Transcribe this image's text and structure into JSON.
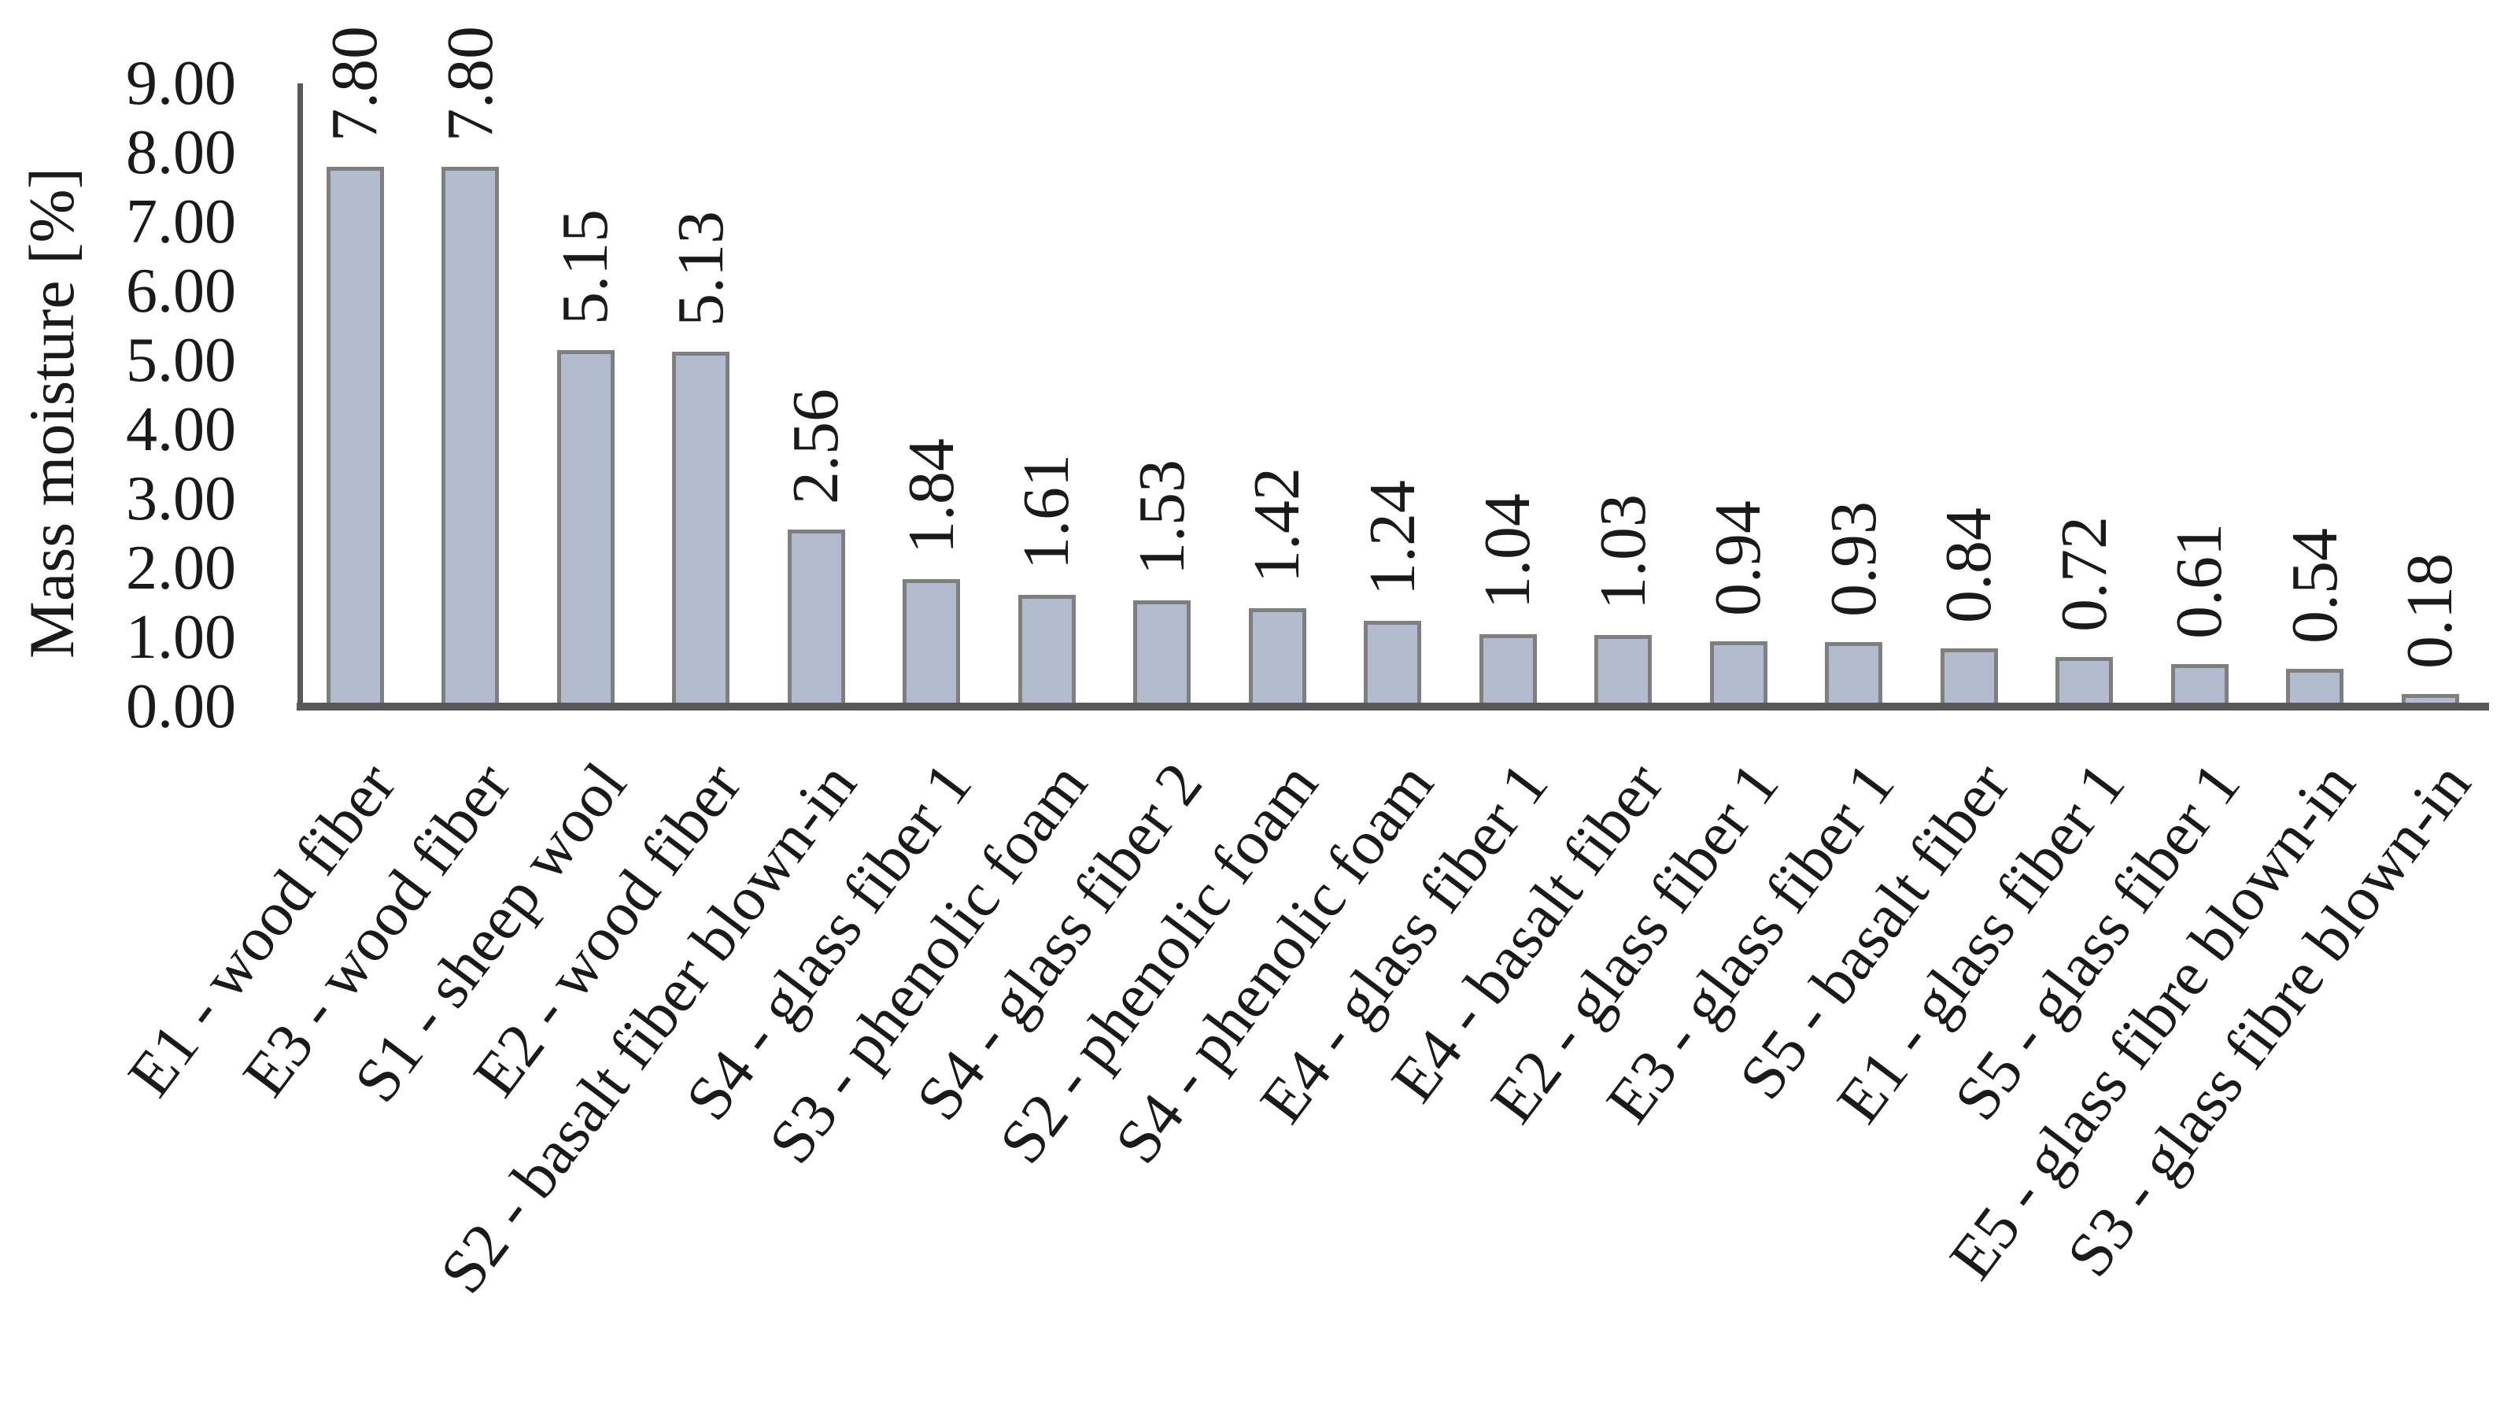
{
  "chart_data": {
    "type": "bar",
    "title": "",
    "xlabel": "",
    "ylabel": "Mass moisture [%]",
    "ylim": [
      0,
      9
    ],
    "y_ticks": [
      "0.00",
      "1.00",
      "2.00",
      "3.00",
      "4.00",
      "5.00",
      "6.00",
      "7.00",
      "8.00",
      "9.00"
    ],
    "grid": false,
    "legend": "none",
    "bar_color": "#b2bcce",
    "bar_border_color": "#7f7f7f",
    "axis_color": "#595959",
    "text_color": "#1a1a1a",
    "categories": [
      "E1 - wood fiber",
      "E3 - wood fiber",
      "S1 - sheep wool",
      "E2 - wood fiber",
      "S2 - basalt fiber blown-in",
      "S4 - glass fiber 1",
      "S3 - phenolic foam",
      "S4 - glass fiber 2",
      "S2 - phenolic foam",
      "S4 - phenolic foam",
      "E4 - glass fiber 1",
      "E4 - basalt fiber",
      "E2 - glass fiber 1",
      "E3 - glass fiber 1",
      "S5 - basalt fiber",
      "E1 - glass fiber 1",
      "S5 - glass fiber 1",
      "E5 - glass fibre blown-in",
      "S3 - glass fibre blown-in"
    ],
    "values": [
      7.8,
      7.8,
      5.15,
      5.13,
      2.56,
      1.84,
      1.61,
      1.53,
      1.42,
      1.24,
      1.04,
      1.03,
      0.94,
      0.93,
      0.84,
      0.72,
      0.61,
      0.54,
      0.18
    ],
    "value_labels": [
      "7.80",
      "7.80",
      "5.15",
      "5.13",
      "2.56",
      "1.84",
      "1.61",
      "1.53",
      "1.42",
      "1.24",
      "1.04",
      "1.03",
      "0.94",
      "0.93",
      "0.84",
      "0.72",
      "0.61",
      "0.54",
      "0.18"
    ]
  }
}
